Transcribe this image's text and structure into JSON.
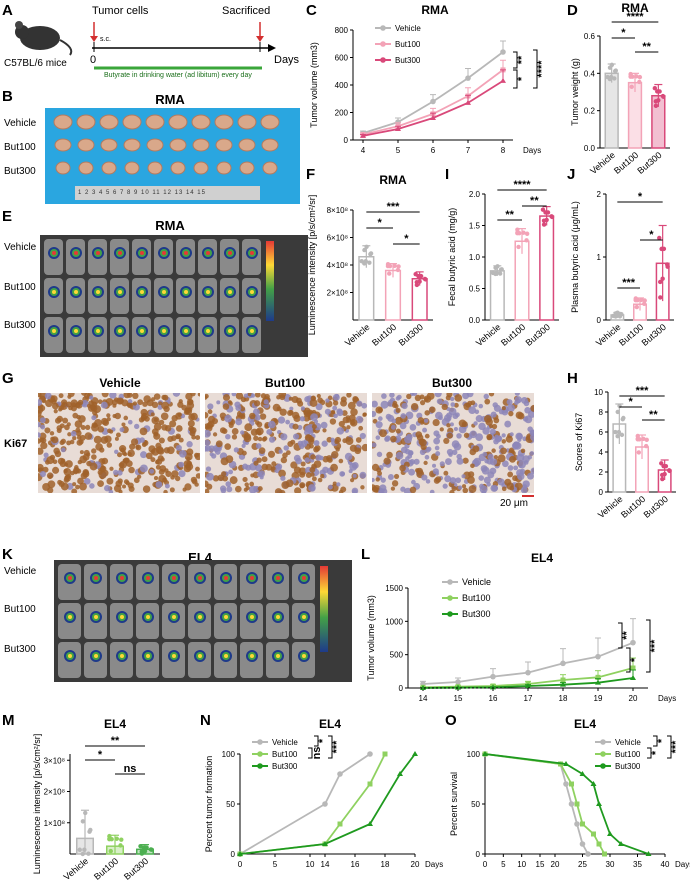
{
  "letters": {
    "A": "A",
    "B": "B",
    "C": "C",
    "D": "D",
    "E": "E",
    "F": "F",
    "G": "G",
    "H": "H",
    "I": "I",
    "J": "J",
    "K": "K",
    "L": "L",
    "M": "M",
    "N": "N",
    "O": "O"
  },
  "colors": {
    "vehicle": "#b8b8b8",
    "but100": "#f3a3b7",
    "but300": "#d9497a",
    "ev": "#b8b8b8",
    "e100": "#8fd160",
    "e300": "#1f9a1f",
    "green_bar": "#4caf50"
  },
  "panelA": {
    "mouse_label": "C57BL/6 mice",
    "tumor_cells": "Tumor cells",
    "sc": "s.c.",
    "sacrificed": "Sacrificed",
    "zero": "0",
    "days": "Days",
    "butyrate": "Butyrate in drinking water (ad libitum) every day"
  },
  "panelB": {
    "title": "RMA",
    "rows": [
      "Vehicle",
      "But100",
      "But300"
    ],
    "ruler": "1 2 3 4 5 6 7 8 9 10 11 12 13 14 15"
  },
  "panelE": {
    "title": "RMA",
    "rows": [
      "Vehicle",
      "But100",
      "But300"
    ]
  },
  "panelG": {
    "cols": [
      "Vehicle",
      "But100",
      "But300"
    ],
    "row_label": "Ki67",
    "scalebar": "20 μm"
  },
  "panelK": {
    "title": "EL4",
    "rows": [
      "Vehicle",
      "But100",
      "But300"
    ]
  },
  "chart_data": [
    {
      "id": "C",
      "type": "line",
      "title": "RMA",
      "ylabel": "Tumor volume (mm3)",
      "xlabel": "Days",
      "x": [
        4,
        5,
        6,
        7,
        8
      ],
      "ylim": [
        0,
        800
      ],
      "yticks": [
        "0",
        "200",
        "400",
        "600",
        "800"
      ],
      "series": [
        {
          "name": "Vehicle",
          "values": [
            50,
            130,
            280,
            450,
            640
          ],
          "err": [
            15,
            30,
            50,
            70,
            80
          ]
        },
        {
          "name": "But100",
          "values": [
            40,
            100,
            190,
            320,
            510
          ],
          "err": [
            12,
            25,
            40,
            60,
            70
          ]
        },
        {
          "name": "But300",
          "values": [
            30,
            80,
            160,
            270,
            430
          ],
          "err": [
            10,
            20,
            35,
            55,
            80
          ]
        }
      ],
      "sig": [
        "**",
        "*",
        "****"
      ]
    },
    {
      "id": "D",
      "type": "bar",
      "title": "RMA",
      "ylabel": "Tumor weight (g)",
      "categories": [
        "Vehicle",
        "But100",
        "But300"
      ],
      "values": [
        0.4,
        0.35,
        0.28
      ],
      "err": [
        0.05,
        0.05,
        0.06
      ],
      "ylim": [
        0,
        0.6
      ],
      "yticks": [
        "0.0",
        "0.2",
        "0.4",
        "0.6"
      ],
      "sig": [
        "*",
        "**",
        "****"
      ]
    },
    {
      "id": "F",
      "type": "bar",
      "title": "RMA",
      "ylabel": "Luminescence intensity [p/s/cm²/sr]",
      "categories": [
        "Vehicle",
        "But100",
        "But300"
      ],
      "values": [
        4.6,
        3.6,
        3.0
      ],
      "err": [
        0.8,
        0.5,
        0.5
      ],
      "ylim": [
        0,
        8
      ],
      "yticks": [
        "2×10⁸",
        "4×10⁸",
        "6×10⁸",
        "8×10⁸"
      ],
      "sig": [
        "*",
        "*",
        "***"
      ]
    },
    {
      "id": "I",
      "type": "bar",
      "title": "",
      "ylabel": "Fecal butyric acid (mg/g)",
      "categories": [
        "Vehicle",
        "But100",
        "But300"
      ],
      "values": [
        0.78,
        1.25,
        1.65
      ],
      "err": [
        0.08,
        0.2,
        0.15
      ],
      "ylim": [
        0,
        2.0
      ],
      "yticks": [
        "0.0",
        "0.5",
        "1.0",
        "1.5",
        "2.0"
      ],
      "sig": [
        "**",
        "**",
        "****"
      ]
    },
    {
      "id": "J",
      "type": "bar",
      "title": "",
      "ylabel": "Plasma butyric acid (μg/mL)",
      "categories": [
        "Vehicle",
        "But100",
        "But300"
      ],
      "values": [
        0.08,
        0.25,
        0.9
      ],
      "err": [
        0.04,
        0.1,
        0.6
      ],
      "ylim": [
        0,
        2.0
      ],
      "yticks": [
        "0",
        "1",
        "2"
      ],
      "sig": [
        "***",
        "*",
        "*"
      ]
    },
    {
      "id": "H",
      "type": "bar",
      "title": "",
      "ylabel": "Scores of Ki67",
      "categories": [
        "Vehicle",
        "But100",
        "But300"
      ],
      "values": [
        6.8,
        4.5,
        2.2
      ],
      "err": [
        2.0,
        1.2,
        1.0
      ],
      "ylim": [
        0,
        10
      ],
      "yticks": [
        "0",
        "2",
        "4",
        "6",
        "8",
        "10"
      ],
      "sig": [
        "*",
        "**",
        "***"
      ]
    },
    {
      "id": "L",
      "type": "line",
      "title": "EL4",
      "ylabel": "Tumor volume (mm3)",
      "xlabel": "Days",
      "x": [
        14,
        15,
        16,
        17,
        18,
        19,
        20
      ],
      "ylim": [
        0,
        1500
      ],
      "yticks": [
        "0",
        "500",
        "1000",
        "1500"
      ],
      "series": [
        {
          "name": "Vehicle",
          "values": [
            60,
            90,
            170,
            230,
            370,
            470,
            680
          ],
          "err": [
            40,
            60,
            120,
            160,
            220,
            280,
            360
          ]
        },
        {
          "name": "But100",
          "values": [
            10,
            20,
            30,
            60,
            120,
            160,
            300
          ],
          "err": [
            10,
            15,
            20,
            40,
            80,
            100,
            150
          ]
        },
        {
          "name": "But300",
          "values": [
            0,
            5,
            10,
            30,
            50,
            80,
            150
          ],
          "err": [
            5,
            8,
            10,
            20,
            30,
            60,
            120
          ]
        }
      ],
      "sig": [
        "**",
        "*",
        "***"
      ]
    },
    {
      "id": "M",
      "type": "bar",
      "title": "EL4",
      "ylabel": "Luminescence intensity [p/s/cm²/sr]",
      "categories": [
        "Vehicle",
        "But100",
        "But300"
      ],
      "values": [
        0.5,
        0.25,
        0.15
      ],
      "err": [
        0.9,
        0.35,
        0.15
      ],
      "ylim": [
        0,
        3.2
      ],
      "yticks": [
        "1×10⁸",
        "2×10⁸",
        "3×10⁸"
      ],
      "sig": [
        "*",
        "ns",
        "**"
      ]
    },
    {
      "id": "N",
      "type": "line",
      "title": "EL4",
      "ylabel": "Percent tumor formation",
      "xlabel": "Days",
      "x": [
        0,
        14,
        15,
        17,
        18,
        19,
        20
      ],
      "ylim": [
        0,
        100
      ],
      "yticks": [
        "0",
        "50",
        "100"
      ],
      "xticks": [
        "0",
        "5",
        "10",
        "14",
        "16",
        "18",
        "20"
      ],
      "series": [
        {
          "name": "Vehicle",
          "x": [
            0,
            14,
            15,
            17
          ],
          "values": [
            0,
            50,
            80,
            100
          ]
        },
        {
          "name": "But100",
          "x": [
            0,
            14,
            15,
            17,
            18
          ],
          "values": [
            0,
            10,
            30,
            70,
            100
          ]
        },
        {
          "name": "But300",
          "x": [
            0,
            14,
            17,
            19,
            20
          ],
          "values": [
            0,
            10,
            30,
            80,
            100
          ]
        }
      ],
      "sig": [
        "*",
        "ns",
        "***"
      ]
    },
    {
      "id": "O",
      "type": "line",
      "title": "EL4",
      "ylabel": "Percent survival",
      "xlabel": "Days",
      "ylim": [
        0,
        100
      ],
      "yticks": [
        "0",
        "50",
        "100"
      ],
      "xticks": [
        "0",
        "5",
        "10",
        "15",
        "20",
        "25",
        "30",
        "35",
        "40"
      ],
      "series": [
        {
          "name": "Vehicle",
          "x": [
            0,
            21,
            22,
            23,
            24,
            25,
            26
          ],
          "values": [
            100,
            90,
            70,
            50,
            30,
            10,
            0
          ]
        },
        {
          "name": "But100",
          "x": [
            0,
            21,
            23,
            24,
            25,
            27,
            28,
            29
          ],
          "values": [
            100,
            90,
            70,
            50,
            30,
            20,
            10,
            0
          ]
        },
        {
          "name": "But300",
          "x": [
            0,
            22,
            25,
            27,
            28,
            30,
            32,
            37
          ],
          "values": [
            100,
            90,
            80,
            70,
            50,
            20,
            10,
            0
          ]
        }
      ],
      "sig": [
        "*",
        "*",
        "***"
      ]
    }
  ]
}
